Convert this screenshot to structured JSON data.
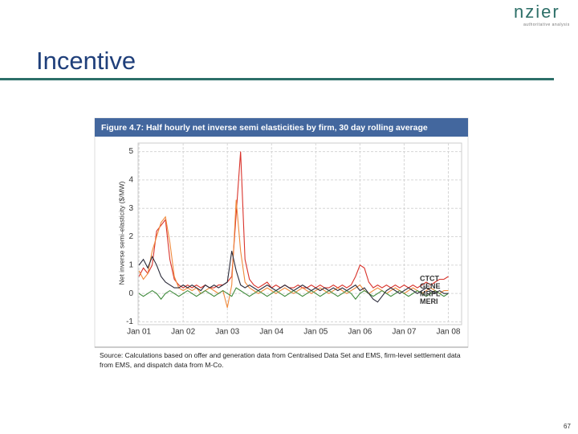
{
  "slide": {
    "logo": "nzier",
    "tagline": "authoritative analysis",
    "title": "Incentive",
    "page_number": "67"
  },
  "chart_data": {
    "type": "line",
    "title": "Figure 4.7: Half hourly net inverse semi elasticities by firm, 30 day rolling average",
    "source": "Source: Calculations based on offer and generation data from Centralised Data Set and EMS, firm-level settlement data from EMS, and dispatch data from M-Co.",
    "ylabel": "Net inverse semi-elasticity ($/MW)",
    "x": [
      2001,
      2001.1,
      2001.2,
      2001.3,
      2001.4,
      2001.5,
      2001.6,
      2001.7,
      2001.8,
      2001.9,
      2002,
      2002.1,
      2002.2,
      2002.3,
      2002.4,
      2002.5,
      2002.6,
      2002.7,
      2002.8,
      2002.9,
      2003,
      2003.1,
      2003.2,
      2003.3,
      2003.4,
      2003.5,
      2003.6,
      2003.7,
      2003.8,
      2003.9,
      2004,
      2004.1,
      2004.2,
      2004.3,
      2004.4,
      2004.5,
      2004.6,
      2004.7,
      2004.8,
      2004.9,
      2005,
      2005.1,
      2005.2,
      2005.3,
      2005.4,
      2005.5,
      2005.6,
      2005.7,
      2005.8,
      2005.9,
      2006,
      2006.1,
      2006.2,
      2006.3,
      2006.4,
      2006.5,
      2006.6,
      2006.7,
      2006.8,
      2006.9,
      2007,
      2007.1,
      2007.2,
      2007.3,
      2007.4,
      2007.5,
      2007.6,
      2007.7,
      2007.8,
      2007.9,
      2008
    ],
    "xlim": [
      2000.98,
      2008.3
    ],
    "xticks": [
      {
        "value": 2001,
        "label": "Jan 01"
      },
      {
        "value": 2002,
        "label": "Jan 02"
      },
      {
        "value": 2003,
        "label": "Jan 03"
      },
      {
        "value": 2004,
        "label": "Jan 04"
      },
      {
        "value": 2005,
        "label": "Jan 05"
      },
      {
        "value": 2006,
        "label": "Jan 06"
      },
      {
        "value": 2007,
        "label": "Jan 07"
      },
      {
        "value": 2008,
        "label": "Jan 08"
      }
    ],
    "ylim": [
      -1.1,
      5.3
    ],
    "yticks": [
      -1,
      0,
      1,
      2,
      3,
      4,
      5
    ],
    "grid": true,
    "series": [
      {
        "name": "CTCT",
        "color": "#d9332b",
        "values": [
          0.6,
          0.9,
          0.7,
          1.0,
          2.2,
          2.4,
          2.6,
          1.2,
          0.5,
          0.3,
          0.2,
          0.3,
          0.2,
          0.3,
          0.2,
          0.3,
          0.2,
          0.2,
          0.3,
          0.3,
          0.4,
          0.6,
          2.8,
          5.0,
          1.2,
          0.5,
          0.3,
          0.2,
          0.3,
          0.4,
          0.2,
          0.3,
          0.2,
          0.3,
          0.2,
          0.2,
          0.3,
          0.2,
          0.2,
          0.3,
          0.2,
          0.3,
          0.2,
          0.2,
          0.3,
          0.2,
          0.3,
          0.2,
          0.3,
          0.6,
          1.0,
          0.9,
          0.4,
          0.2,
          0.3,
          0.2,
          0.3,
          0.2,
          0.3,
          0.2,
          0.3,
          0.2,
          0.3,
          0.2,
          0.3,
          0.4,
          0.3,
          0.4,
          0.5,
          0.5,
          0.6
        ]
      },
      {
        "name": "GENE",
        "color": "#f08a3c",
        "values": [
          0.8,
          0.5,
          0.7,
          1.5,
          2.0,
          2.5,
          2.7,
          1.8,
          0.6,
          0.2,
          0.1,
          0.2,
          0.1,
          0.2,
          0.0,
          0.1,
          0.2,
          0.1,
          0.0,
          0.1,
          -0.5,
          0.3,
          3.3,
          1.5,
          0.4,
          0.2,
          0.1,
          0.0,
          0.1,
          0.2,
          0.1,
          0.0,
          0.1,
          0.2,
          0.1,
          0.0,
          0.1,
          0.2,
          0.1,
          0.0,
          0.1,
          0.2,
          0.1,
          0.0,
          0.1,
          0.2,
          0.1,
          0.0,
          0.1,
          0.2,
          0.3,
          0.1,
          0.0,
          0.1,
          0.2,
          0.1,
          0.0,
          0.1,
          0.2,
          0.1,
          0.0,
          0.1,
          0.2,
          0.1,
          0.0,
          0.1,
          0.2,
          0.1,
          0.0,
          0.1,
          0.1
        ]
      },
      {
        "name": "MRPL",
        "color": "#3e8a3a",
        "values": [
          0.0,
          -0.1,
          0.0,
          0.1,
          0.0,
          -0.2,
          0.0,
          0.1,
          0.0,
          -0.1,
          0.0,
          0.1,
          0.0,
          -0.1,
          0.0,
          0.1,
          0.0,
          -0.1,
          0.0,
          0.1,
          0.0,
          -0.1,
          0.2,
          0.1,
          0.0,
          -0.1,
          0.0,
          0.1,
          0.0,
          -0.1,
          0.0,
          0.1,
          0.0,
          -0.1,
          0.0,
          0.1,
          0.0,
          -0.1,
          0.0,
          0.1,
          0.0,
          -0.1,
          0.0,
          0.1,
          0.0,
          -0.1,
          0.0,
          0.1,
          0.0,
          -0.2,
          0.0,
          0.1,
          0.0,
          -0.1,
          0.0,
          0.1,
          0.0,
          -0.1,
          0.0,
          0.1,
          0.0,
          -0.1,
          0.0,
          0.1,
          0.0,
          -0.1,
          0.0,
          0.1,
          0.0,
          -0.1,
          0.0
        ]
      },
      {
        "name": "MERI",
        "color": "#2b2b3a",
        "values": [
          1.0,
          1.2,
          0.9,
          1.3,
          1.0,
          0.6,
          0.4,
          0.3,
          0.2,
          0.2,
          0.3,
          0.2,
          0.3,
          0.2,
          0.1,
          0.3,
          0.2,
          0.3,
          0.2,
          0.3,
          0.4,
          1.5,
          0.8,
          0.3,
          0.2,
          0.3,
          0.2,
          0.1,
          0.2,
          0.3,
          0.2,
          0.1,
          0.2,
          0.3,
          0.2,
          0.1,
          0.2,
          0.3,
          0.2,
          0.1,
          0.2,
          0.1,
          0.2,
          0.1,
          0.2,
          0.1,
          0.2,
          0.1,
          0.2,
          0.3,
          0.1,
          0.2,
          0.0,
          -0.2,
          -0.3,
          -0.1,
          0.1,
          0.2,
          0.1,
          0.0,
          0.1,
          0.2,
          0.1,
          0.0,
          0.1,
          0.2,
          0.1,
          0.0,
          0.1,
          0.0,
          0.0
        ]
      }
    ]
  }
}
